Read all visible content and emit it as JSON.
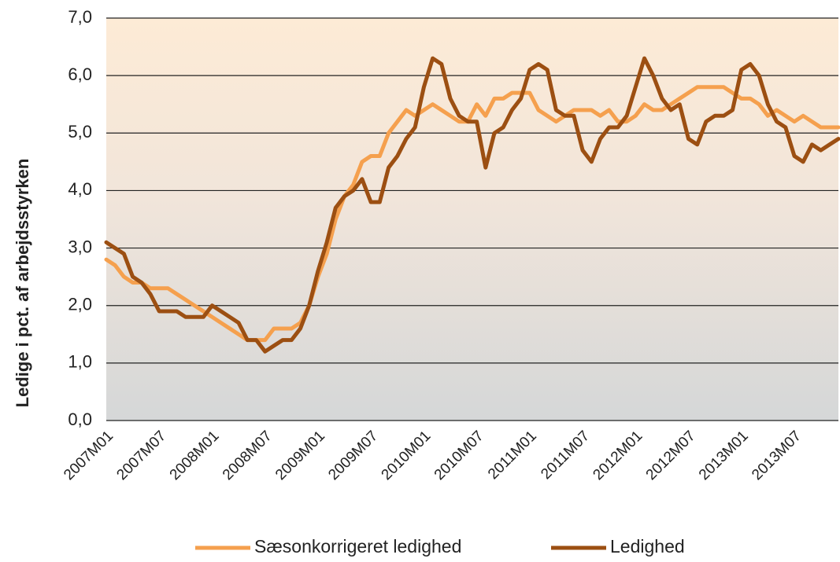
{
  "chart_data": {
    "type": "line",
    "y_label": "Ledige i pct. af arbejdsstyrken",
    "categories": [
      "2007M01",
      null,
      null,
      null,
      null,
      null,
      "2007M07",
      null,
      null,
      null,
      null,
      null,
      "2008M01",
      null,
      null,
      null,
      null,
      null,
      "2008M07",
      null,
      null,
      null,
      null,
      null,
      "2009M01",
      null,
      null,
      null,
      null,
      null,
      "2009M07",
      null,
      null,
      null,
      null,
      null,
      "2010M01",
      null,
      null,
      null,
      null,
      null,
      "2010M07",
      null,
      null,
      null,
      null,
      null,
      "2011M01",
      null,
      null,
      null,
      null,
      null,
      "2011M07",
      null,
      null,
      null,
      null,
      null,
      "2012M01",
      null,
      null,
      null,
      null,
      null,
      "2012M07",
      null,
      null,
      null,
      null,
      null,
      "2013M01",
      null,
      null,
      null,
      null,
      null,
      "2013M07",
      null,
      null,
      null,
      null,
      null
    ],
    "series": [
      {
        "name": "Sæsonkorrigeret ledighed",
        "color": "#f5a04e",
        "values": [
          2.8,
          2.7,
          2.5,
          2.4,
          2.4,
          2.3,
          2.3,
          2.3,
          2.2,
          2.1,
          2.0,
          1.9,
          1.8,
          1.7,
          1.6,
          1.5,
          1.4,
          1.4,
          1.4,
          1.6,
          1.6,
          1.6,
          1.7,
          2.0,
          2.5,
          2.9,
          3.5,
          3.9,
          4.1,
          4.5,
          4.6,
          4.6,
          5.0,
          5.2,
          5.4,
          5.3,
          5.4,
          5.5,
          5.4,
          5.3,
          5.2,
          5.2,
          5.5,
          5.3,
          5.6,
          5.6,
          5.7,
          5.7,
          5.7,
          5.4,
          5.3,
          5.2,
          5.3,
          5.4,
          5.4,
          5.4,
          5.3,
          5.4,
          5.2,
          5.2,
          5.3,
          5.5,
          5.4,
          5.4,
          5.5,
          5.6,
          5.7,
          5.8,
          5.8,
          5.8,
          5.8,
          5.7,
          5.6,
          5.6,
          5.5,
          5.3,
          5.4,
          5.3,
          5.2,
          5.3,
          5.2,
          5.1,
          5.1,
          5.1
        ]
      },
      {
        "name": "Ledighed",
        "color": "#9c4f12",
        "values": [
          3.1,
          3.0,
          2.9,
          2.5,
          2.4,
          2.2,
          1.9,
          1.9,
          1.9,
          1.8,
          1.8,
          1.8,
          2.0,
          1.9,
          1.8,
          1.7,
          1.4,
          1.4,
          1.2,
          1.3,
          1.4,
          1.4,
          1.6,
          2.0,
          2.6,
          3.1,
          3.7,
          3.9,
          4.0,
          4.2,
          3.8,
          3.8,
          4.4,
          4.6,
          4.9,
          5.1,
          5.8,
          6.3,
          6.2,
          5.6,
          5.3,
          5.2,
          5.2,
          4.4,
          5.0,
          5.1,
          5.4,
          5.6,
          6.1,
          6.2,
          6.1,
          5.4,
          5.3,
          5.3,
          4.7,
          4.5,
          4.9,
          5.1,
          5.1,
          5.3,
          5.8,
          6.3,
          6.0,
          5.6,
          5.4,
          5.5,
          4.9,
          4.8,
          5.2,
          5.3,
          5.3,
          5.4,
          6.1,
          6.2,
          6.0,
          5.5,
          5.2,
          5.1,
          4.6,
          4.5,
          4.8,
          4.7,
          4.8,
          4.9
        ]
      }
    ],
    "ylim": [
      0,
      7
    ],
    "yticks": [
      {
        "value": 0,
        "label": "0,0"
      },
      {
        "value": 1,
        "label": "1,0"
      },
      {
        "value": 2,
        "label": "2,0"
      },
      {
        "value": 3,
        "label": "3,0"
      },
      {
        "value": 4,
        "label": "4,0"
      },
      {
        "value": 5,
        "label": "5,0"
      },
      {
        "value": 6,
        "label": "6,0"
      },
      {
        "value": 7,
        "label": "7,0"
      }
    ],
    "grid": true,
    "legend": "bottom"
  }
}
